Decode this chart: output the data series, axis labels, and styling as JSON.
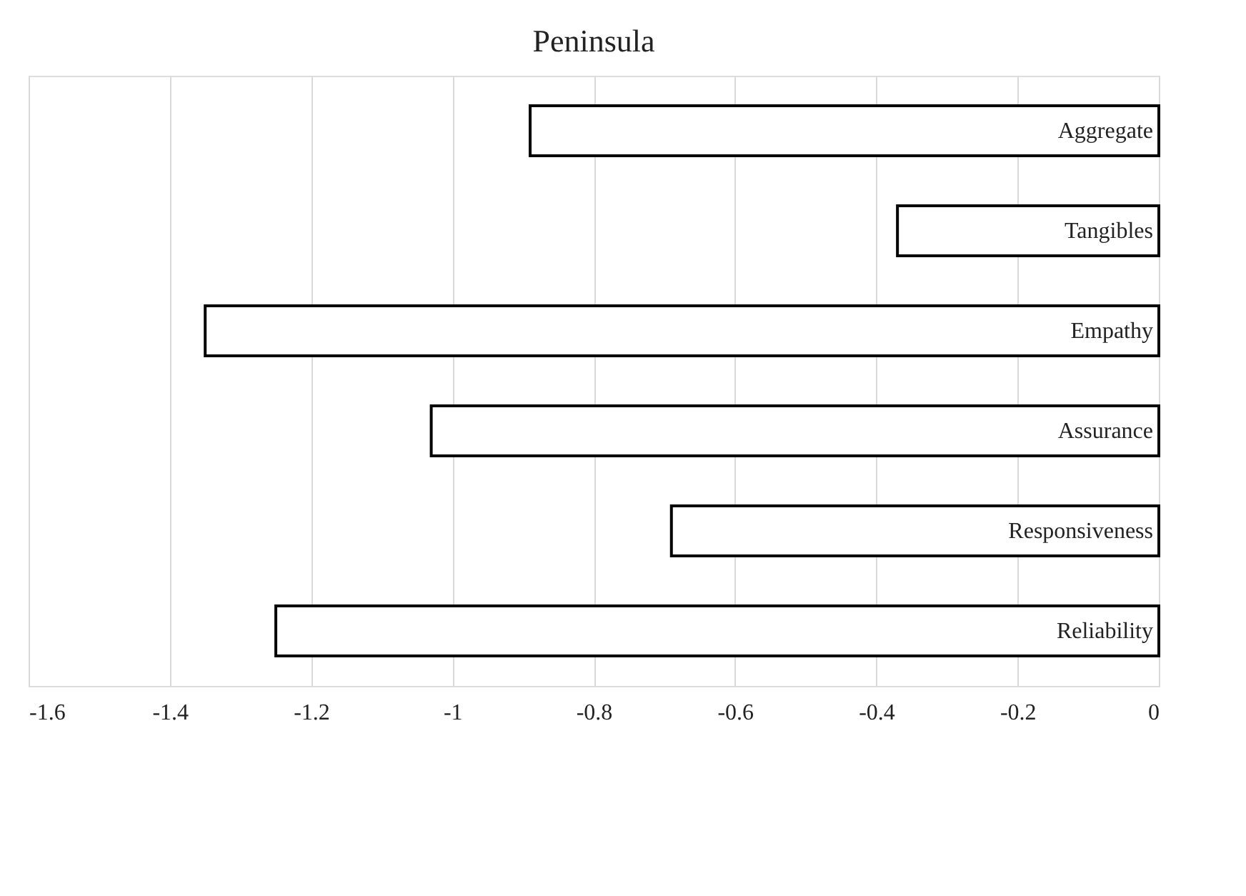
{
  "chart_data": {
    "type": "bar",
    "orientation": "horizontal",
    "title": "Peninsula",
    "categories": [
      "Aggregate",
      "Tangibles",
      "Empathy",
      "Assurance",
      "Responsiveness",
      "Reliability"
    ],
    "values": [
      -0.89,
      -0.37,
      -1.35,
      -1.03,
      -0.69,
      -1.25
    ],
    "color": "#ffffff",
    "xlim": [
      -1.6,
      0
    ],
    "xticks": [
      -1.6,
      -1.4,
      -1.2,
      -1,
      -0.8,
      -0.6,
      -0.4,
      -0.2,
      0
    ],
    "grid": "x"
  }
}
